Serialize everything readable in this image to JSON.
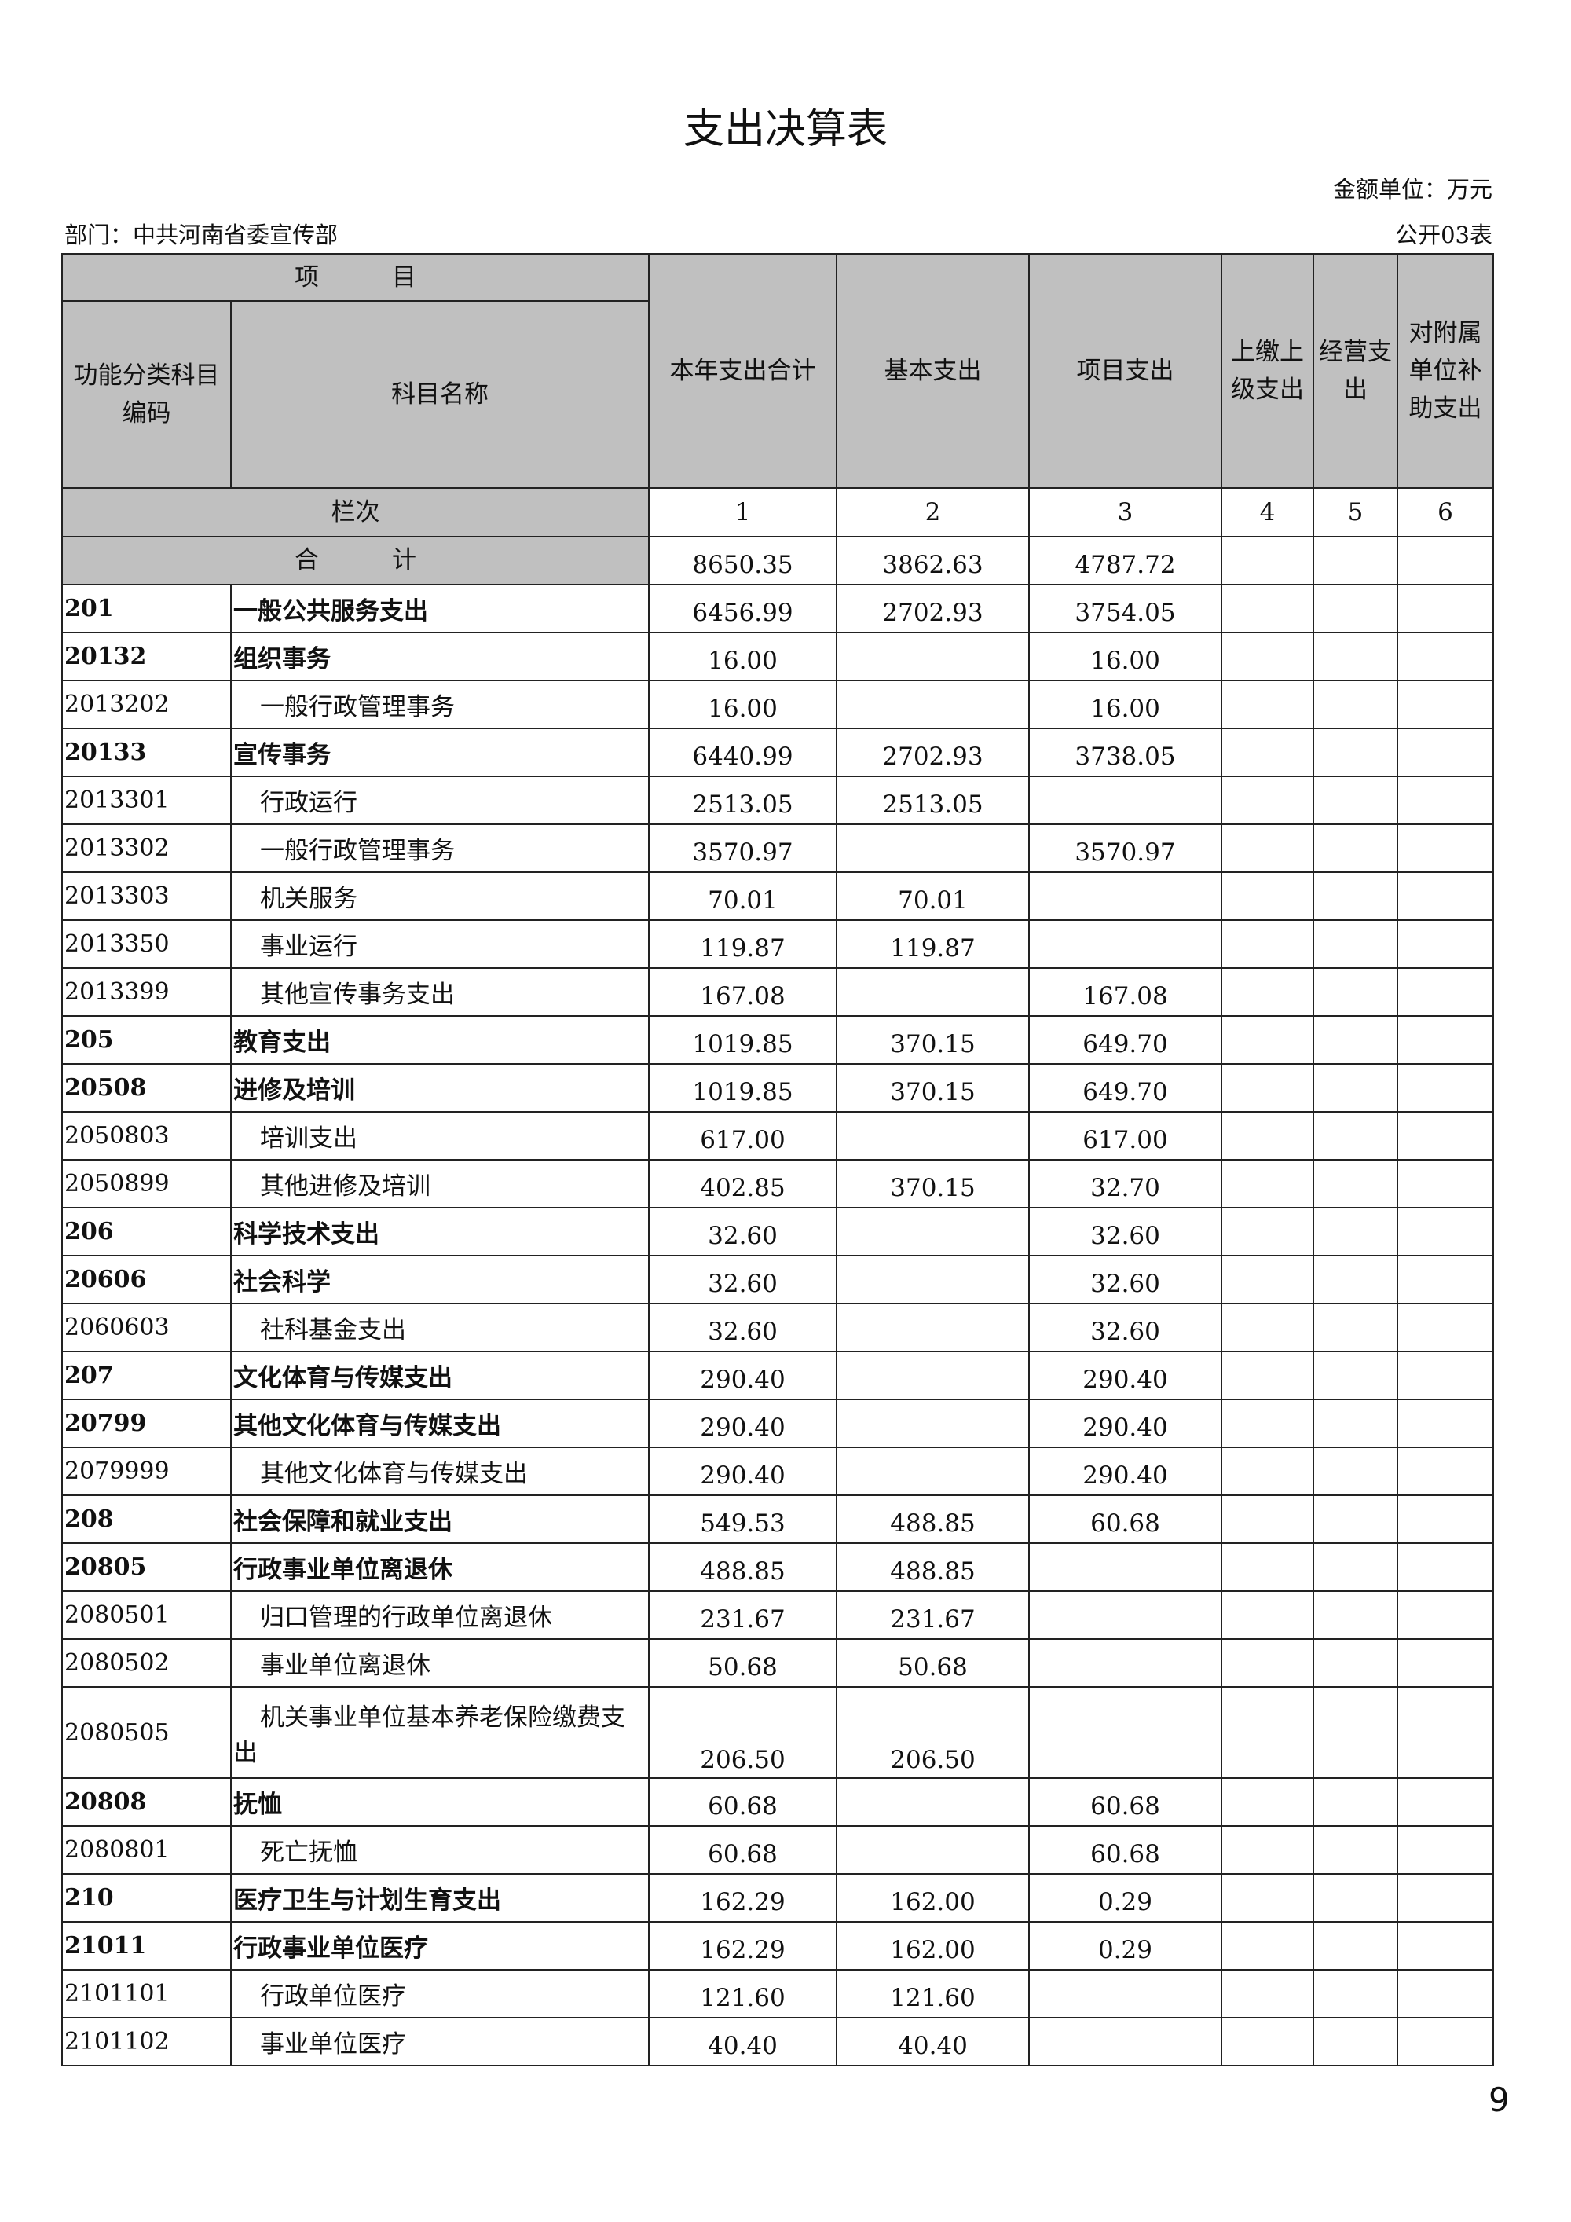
{
  "title": "支出决算表",
  "unit": "金额单位：万元",
  "department": "部门：中共河南省委宣传部",
  "form_no": "公开03表",
  "header": {
    "item": "项　　　目",
    "code": "功能分类科目编码",
    "name": "科目名称",
    "cols": [
      "本年支出合计",
      "基本支出",
      "项目支出",
      "上缴上级支出",
      "经营支出",
      "对附属单位补助支出"
    ],
    "column_label": "栏次",
    "column_numbers": [
      "1",
      "2",
      "3",
      "4",
      "5",
      "6"
    ]
  },
  "total": {
    "label": "合　　　计",
    "values": [
      "8650.35",
      "3862.63",
      "4787.72",
      "",
      "",
      ""
    ]
  },
  "rows": [
    {
      "code": "201",
      "name": "一般公共服务支出",
      "values": [
        "6456.99",
        "2702.93",
        "3754.05"
      ]
    },
    {
      "code": "20132",
      "name": "组织事务",
      "values": [
        "16.00",
        "",
        "16.00"
      ]
    },
    {
      "code": "2013202",
      "name": "一般行政管理事务",
      "values": [
        "16.00",
        "",
        "16.00"
      ]
    },
    {
      "code": "20133",
      "name": "宣传事务",
      "values": [
        "6440.99",
        "2702.93",
        "3738.05"
      ]
    },
    {
      "code": "2013301",
      "name": "行政运行",
      "values": [
        "2513.05",
        "2513.05",
        ""
      ]
    },
    {
      "code": "2013302",
      "name": "一般行政管理事务",
      "values": [
        "3570.97",
        "",
        "3570.97"
      ]
    },
    {
      "code": "2013303",
      "name": "机关服务",
      "values": [
        "70.01",
        "70.01",
        ""
      ]
    },
    {
      "code": "2013350",
      "name": "事业运行",
      "values": [
        "119.87",
        "119.87",
        ""
      ]
    },
    {
      "code": "2013399",
      "name": "其他宣传事务支出",
      "values": [
        "167.08",
        "",
        "167.08"
      ]
    },
    {
      "code": "205",
      "name": "教育支出",
      "values": [
        "1019.85",
        "370.15",
        "649.70"
      ]
    },
    {
      "code": "20508",
      "name": "进修及培训",
      "values": [
        "1019.85",
        "370.15",
        "649.70"
      ]
    },
    {
      "code": "2050803",
      "name": "培训支出",
      "values": [
        "617.00",
        "",
        "617.00"
      ]
    },
    {
      "code": "2050899",
      "name": "其他进修及培训",
      "values": [
        "402.85",
        "370.15",
        "32.70"
      ]
    },
    {
      "code": "206",
      "name": "科学技术支出",
      "values": [
        "32.60",
        "",
        "32.60"
      ]
    },
    {
      "code": "20606",
      "name": "社会科学",
      "values": [
        "32.60",
        "",
        "32.60"
      ]
    },
    {
      "code": "2060603",
      "name": "社科基金支出",
      "values": [
        "32.60",
        "",
        "32.60"
      ]
    },
    {
      "code": "207",
      "name": "文化体育与传媒支出",
      "values": [
        "290.40",
        "",
        "290.40"
      ]
    },
    {
      "code": "20799",
      "name": "其他文化体育与传媒支出",
      "values": [
        "290.40",
        "",
        "290.40"
      ]
    },
    {
      "code": "2079999",
      "name": "其他文化体育与传媒支出",
      "values": [
        "290.40",
        "",
        "290.40"
      ]
    },
    {
      "code": "208",
      "name": "社会保障和就业支出",
      "values": [
        "549.53",
        "488.85",
        "60.68"
      ]
    },
    {
      "code": "20805",
      "name": "行政事业单位离退休",
      "values": [
        "488.85",
        "488.85",
        ""
      ]
    },
    {
      "code": "2080501",
      "name": "归口管理的行政单位离退休",
      "values": [
        "231.67",
        "231.67",
        ""
      ]
    },
    {
      "code": "2080502",
      "name": "事业单位离退休",
      "values": [
        "50.68",
        "50.68",
        ""
      ]
    },
    {
      "code": "2080505",
      "name": "机关事业单位基本养老保险缴费支出",
      "values": [
        "206.50",
        "206.50",
        ""
      ]
    },
    {
      "code": "20808",
      "name": "抚恤",
      "values": [
        "60.68",
        "",
        "60.68"
      ]
    },
    {
      "code": "2080801",
      "name": "死亡抚恤",
      "values": [
        "60.68",
        "",
        "60.68"
      ]
    },
    {
      "code": "210",
      "name": "医疗卫生与计划生育支出",
      "values": [
        "162.29",
        "162.00",
        "0.29"
      ]
    },
    {
      "code": "21011",
      "name": "行政事业单位医疗",
      "values": [
        "162.29",
        "162.00",
        "0.29"
      ]
    },
    {
      "code": "2101101",
      "name": "行政单位医疗",
      "values": [
        "121.60",
        "121.60",
        ""
      ]
    },
    {
      "code": "2101102",
      "name": "事业单位医疗",
      "values": [
        "40.40",
        "40.40",
        ""
      ]
    }
  ],
  "page_number": "9",
  "colors": {
    "header_bg": "#c0c0c0",
    "border": "#222222"
  }
}
